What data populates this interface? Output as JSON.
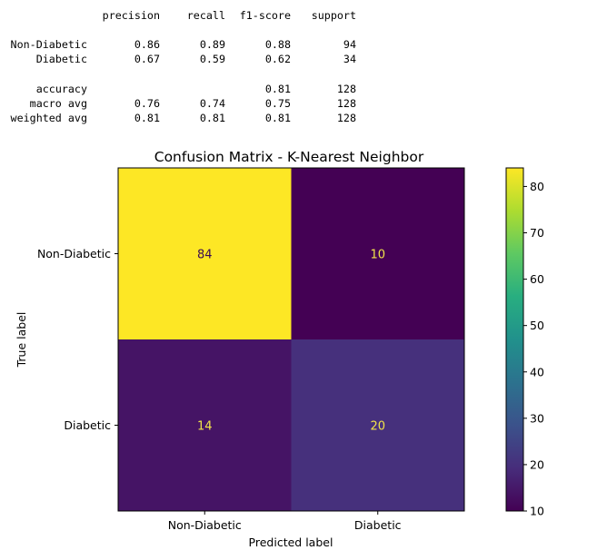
{
  "report": {
    "headers": [
      "precision",
      "recall",
      "f1-score",
      "support"
    ],
    "rows": [
      {
        "label": "Non-Diabetic",
        "values": [
          "0.86",
          "0.89",
          "0.88",
          "94"
        ]
      },
      {
        "label": "Diabetic",
        "values": [
          "0.67",
          "0.59",
          "0.62",
          "34"
        ]
      },
      {
        "label": "accuracy",
        "values": [
          "",
          "",
          "0.81",
          "128"
        ]
      },
      {
        "label": "macro avg",
        "values": [
          "0.76",
          "0.74",
          "0.75",
          "128"
        ]
      },
      {
        "label": "weighted avg",
        "values": [
          "0.81",
          "0.81",
          "0.81",
          "128"
        ]
      }
    ]
  },
  "chart_data": {
    "type": "heatmap",
    "title": "Confusion Matrix - K-Nearest Neighbor",
    "xlabel": "Predicted label",
    "ylabel": "True label",
    "x_categories": [
      "Non-Diabetic",
      "Diabetic"
    ],
    "y_categories": [
      "Non-Diabetic",
      "Diabetic"
    ],
    "matrix": [
      [
        84,
        10
      ],
      [
        14,
        20
      ]
    ],
    "colorbar": {
      "colormap": "viridis",
      "range": [
        10,
        84
      ],
      "ticks": [
        10,
        20,
        30,
        40,
        50,
        60,
        70,
        80
      ]
    },
    "cell_colors": {
      "high": "#fde725",
      "low": "#440154",
      "low_mid": "#471365",
      "mid": "#482979"
    },
    "annotation_colors": {
      "on_light": "#3a0a52",
      "on_dark": "#f1e44a"
    }
  }
}
